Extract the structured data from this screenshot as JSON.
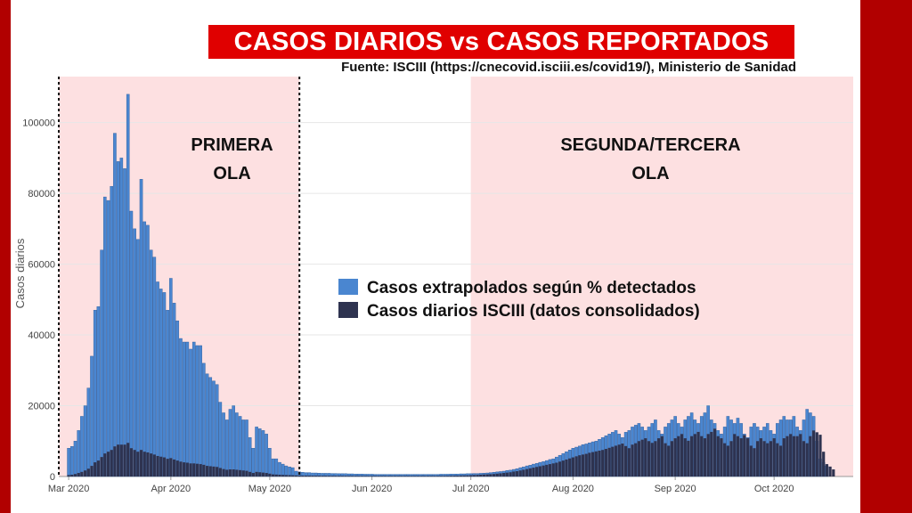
{
  "header": {
    "title": "CASOS DIARIOS vs CASOS REPORTADOS",
    "source": "Fuente: ISCIII (https://cnecovid.isciii.es/covid19/), Ministerio de Sanidad"
  },
  "colors": {
    "frame": "#b10000",
    "title_bg": "#e00000",
    "wave_shade": "#fde0e1",
    "extrapolated": "#4a86d0",
    "reported": "#2e3350"
  },
  "chart_data": {
    "type": "bar",
    "stacking": "overlay",
    "ylabel": "Casos diarios",
    "xlabel": "",
    "ylim": [
      0,
      113000
    ],
    "y_ticks": [
      "0",
      "20000",
      "40000",
      "60000",
      "80000",
      "100000"
    ],
    "x_ticks": [
      "Mar 2020",
      "Apr 2020",
      "May 2020",
      "Jun 2020",
      "Jul 2020",
      "Aug 2020",
      "Sep 2020",
      "Oct 2020"
    ],
    "x_range": [
      "2020-02-27",
      "2020-10-25"
    ],
    "grid": true,
    "legend_position": "center",
    "legend": [
      "Casos extrapolados según % detectados",
      "Casos diarios ISCIII (datos consolidados)"
    ],
    "annotations": [
      {
        "text_lines": [
          "PRIMERA",
          "OLA"
        ],
        "shaded_range": [
          "2020-02-27",
          "2020-05-10"
        ]
      },
      {
        "text_lines": [
          "SEGUNDA/TERCERA",
          "OLA"
        ],
        "shaded_range": [
          "2020-07-01",
          "2020-10-25"
        ]
      }
    ],
    "dashed_lines": [
      "2020-02-27",
      "2020-05-10"
    ],
    "start_date": "2020-03-01",
    "series": [
      {
        "name": "Casos extrapolados según % detectados",
        "values": [
          8000,
          8500,
          10000,
          13000,
          17000,
          20000,
          25000,
          34000,
          47000,
          48000,
          64000,
          79000,
          78000,
          82000,
          97000,
          89000,
          90000,
          87000,
          108000,
          75000,
          70000,
          67000,
          84000,
          72000,
          71000,
          64000,
          62000,
          55000,
          53000,
          52000,
          47000,
          56000,
          49000,
          44000,
          39000,
          38000,
          38000,
          36000,
          38000,
          37000,
          37000,
          32000,
          29000,
          28000,
          27000,
          26000,
          21000,
          18000,
          16000,
          19000,
          20000,
          18000,
          17000,
          16000,
          16000,
          11000,
          8000,
          14000,
          13500,
          13000,
          12000,
          8000,
          5000,
          5000,
          4000,
          3500,
          3000,
          2700,
          2500,
          1500,
          1300,
          1200,
          1100,
          1100,
          1000,
          1000,
          950,
          900,
          900,
          900,
          850,
          850,
          800,
          800,
          800,
          750,
          750,
          700,
          700,
          700,
          650,
          650,
          650,
          600,
          600,
          600,
          600,
          600,
          600,
          600,
          600,
          600,
          600,
          600,
          600,
          600,
          600,
          600,
          600,
          600,
          600,
          600,
          600,
          650,
          650,
          650,
          700,
          700,
          700,
          750,
          750,
          800,
          800,
          850,
          850,
          900,
          950,
          1000,
          1100,
          1200,
          1300,
          1400,
          1500,
          1700,
          1800,
          2000,
          2200,
          2500,
          2700,
          3000,
          3200,
          3500,
          3700,
          4000,
          4200,
          4500,
          4800,
          5000,
          5500,
          6000,
          6500,
          7000,
          7500,
          8000,
          8300,
          8600,
          9000,
          9200,
          9500,
          9800,
          10000,
          10500,
          11000,
          11500,
          12000,
          12500,
          13000,
          12000,
          11000,
          12500,
          13000,
          14000,
          14500,
          15000,
          14000,
          13000,
          14000,
          15000,
          16000,
          13000,
          12000,
          14000,
          15000,
          16000,
          17000,
          15000,
          14000,
          16000,
          17000,
          18000,
          16000,
          15000,
          17000,
          18000,
          20000,
          16000,
          15000,
          13000,
          12000,
          14000,
          17000,
          16000,
          15000,
          16500,
          15000,
          12000,
          11000,
          14000,
          15000,
          14000,
          13000,
          14000,
          15000,
          13000,
          12000,
          15000,
          16000,
          17000,
          16000,
          16000,
          17000,
          14000,
          13000,
          16000,
          19000,
          18000,
          17000,
          10000,
          5000,
          4000,
          3000
        ],
        "color": "#4a86d0"
      },
      {
        "name": "Casos diarios ISCIII (datos consolidados)",
        "values": [
          400,
          500,
          700,
          1000,
          1300,
          1700,
          2200,
          3000,
          4000,
          4500,
          5500,
          6500,
          7000,
          7500,
          8500,
          9000,
          9000,
          9000,
          9500,
          8000,
          7500,
          7000,
          7500,
          7000,
          6800,
          6500,
          6200,
          5800,
          5600,
          5400,
          5000,
          5200,
          4800,
          4500,
          4200,
          4000,
          3900,
          3700,
          3700,
          3600,
          3500,
          3300,
          3000,
          2900,
          2800,
          2700,
          2400,
          2100,
          1900,
          2000,
          2000,
          1900,
          1800,
          1700,
          1600,
          1300,
          1000,
          1300,
          1200,
          1100,
          1000,
          800,
          600,
          550,
          500,
          450,
          400,
          380,
          350,
          300,
          280,
          260,
          250,
          250,
          240,
          230,
          220,
          210,
          210,
          200,
          200,
          200,
          190,
          190,
          190,
          180,
          180,
          180,
          170,
          170,
          170,
          170,
          170,
          170,
          170,
          170,
          170,
          170,
          170,
          170,
          170,
          170,
          170,
          170,
          170,
          170,
          170,
          170,
          170,
          170,
          170,
          170,
          170,
          180,
          190,
          200,
          220,
          240,
          260,
          280,
          300,
          330,
          360,
          400,
          450,
          500,
          550,
          600,
          650,
          700,
          800,
          900,
          1000,
          1100,
          1200,
          1400,
          1500,
          1700,
          1900,
          2100,
          2300,
          2500,
          2700,
          2900,
          3100,
          3300,
          3500,
          3700,
          3900,
          4200,
          4500,
          4800,
          5100,
          5400,
          5700,
          6000,
          6200,
          6400,
          6700,
          6900,
          7100,
          7300,
          7500,
          7800,
          8100,
          8400,
          8700,
          9000,
          9300,
          8600,
          8000,
          9000,
          9400,
          10000,
          10400,
          10800,
          10000,
          9500,
          10000,
          10800,
          11400,
          9400,
          8700,
          10000,
          10800,
          11400,
          12000,
          10800,
          10100,
          11400,
          12000,
          12600,
          11400,
          10800,
          12000,
          12600,
          13500,
          11400,
          10800,
          9400,
          8700,
          10000,
          12000,
          11400,
          10800,
          11700,
          10800,
          8700,
          8000,
          10000,
          10800,
          10000,
          9400,
          10000,
          10800,
          9400,
          8700,
          10800,
          11400,
          12000,
          11400,
          11400,
          12000,
          10000,
          9400,
          11400,
          13000,
          12500,
          11800,
          7000,
          3500,
          2800,
          2000
        ],
        "color": "#2e3350"
      }
    ]
  }
}
